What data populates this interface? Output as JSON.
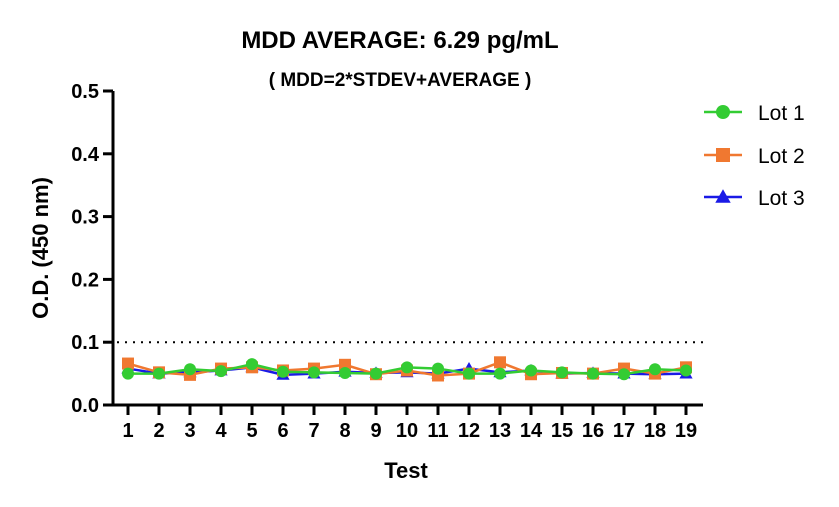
{
  "chart_data": {
    "type": "line",
    "title": "MDD AVERAGE:  6.29 pg/mL",
    "subtitle": "( MDD=2*STDEV+AVERAGE )",
    "xlabel": "Test",
    "ylabel": "O.D. (450 nm)",
    "x": [
      1,
      2,
      3,
      4,
      5,
      6,
      7,
      8,
      9,
      10,
      11,
      12,
      13,
      14,
      15,
      16,
      17,
      18,
      19
    ],
    "ylim": [
      0,
      0.5
    ],
    "yticks": [
      "0.0",
      "0.1",
      "0.2",
      "0.3",
      "0.4",
      "0.5"
    ],
    "threshold": 0.1,
    "grid": false,
    "legend_position": "right",
    "series": [
      {
        "name": "Lot 1",
        "marker": "circle",
        "color": "#33cc33",
        "values": [
          0.05,
          0.05,
          0.057,
          0.054,
          0.065,
          0.053,
          0.052,
          0.051,
          0.05,
          0.06,
          0.058,
          0.05,
          0.05,
          0.055,
          0.052,
          0.05,
          0.049,
          0.057,
          0.055
        ]
      },
      {
        "name": "Lot 2",
        "marker": "square",
        "color": "#f07830",
        "values": [
          0.066,
          0.052,
          0.048,
          0.058,
          0.06,
          0.055,
          0.058,
          0.064,
          0.049,
          0.055,
          0.047,
          0.05,
          0.068,
          0.049,
          0.051,
          0.05,
          0.058,
          0.05,
          0.06
        ]
      },
      {
        "name": "Lot 3",
        "marker": "triangle",
        "color": "#1a1ae6",
        "values": [
          0.058,
          0.05,
          0.052,
          0.055,
          0.06,
          0.048,
          0.05,
          0.053,
          0.051,
          0.052,
          0.05,
          0.058,
          0.052,
          0.055,
          0.05,
          0.051,
          0.05,
          0.049,
          0.05
        ]
      }
    ]
  }
}
